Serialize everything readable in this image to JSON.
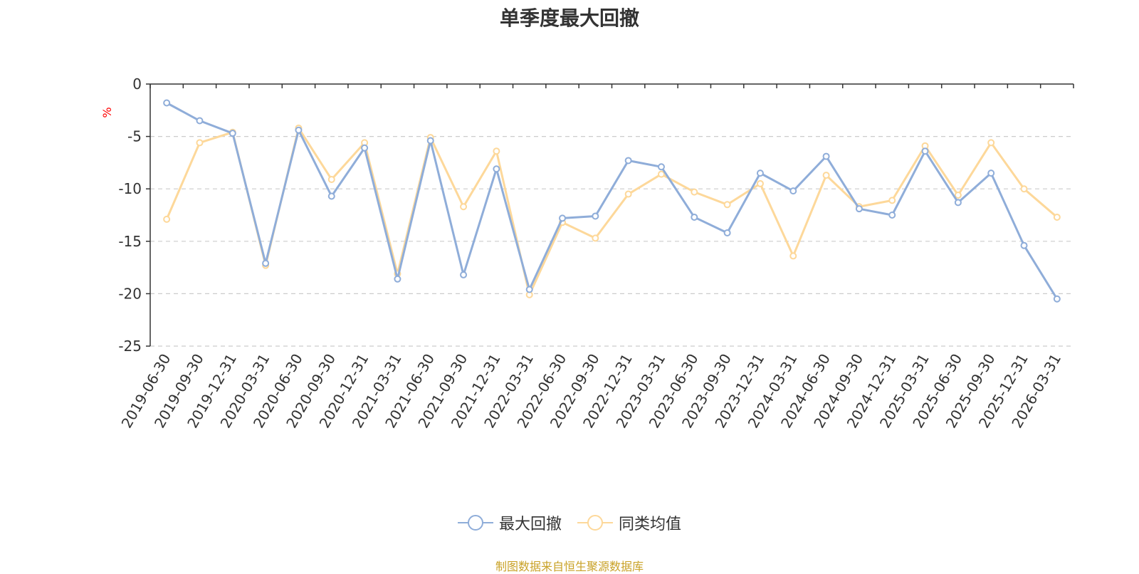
{
  "chart_data": {
    "type": "line",
    "title": "单季度最大回撤",
    "ylabel": "%",
    "ylim": [
      -25,
      0
    ],
    "yticks": [
      0,
      -5,
      -10,
      -15,
      -20,
      -25
    ],
    "grid": true,
    "legend_position": "bottom-center",
    "x": [
      "2019-06-30",
      "2019-09-30",
      "2019-12-31",
      "2020-03-31",
      "2020-06-30",
      "2020-09-30",
      "2020-12-31",
      "2021-03-31",
      "2021-06-30",
      "2021-09-30",
      "2021-12-31",
      "2022-03-31",
      "2022-06-30",
      "2022-09-30",
      "2022-12-31",
      "2023-03-31",
      "2023-06-30",
      "2023-09-30",
      "2023-12-31",
      "2024-03-31",
      "2024-06-30",
      "2024-09-30",
      "2024-12-31",
      "2025-03-31",
      "2025-06-30",
      "2025-09-30",
      "2025-12-31",
      "2026-03-31"
    ],
    "series": [
      {
        "name": "最大回撤",
        "color": "#8fadd9",
        "values": [
          -1.8,
          -3.5,
          -4.7,
          -17.1,
          -4.4,
          -10.7,
          -6.1,
          -18.6,
          -5.4,
          -18.2,
          -8.1,
          -19.6,
          -12.8,
          -12.6,
          -7.3,
          -7.9,
          -12.7,
          -14.2,
          -8.5,
          -10.2,
          -6.9,
          -11.9,
          -12.5,
          -6.4,
          -11.3,
          -8.5,
          -15.4,
          -20.5
        ]
      },
      {
        "name": "同类均值",
        "color": "#fdd89a",
        "values": [
          -12.9,
          -5.6,
          -4.6,
          -17.3,
          -4.2,
          -9.1,
          -5.6,
          -18.1,
          -5.1,
          -11.7,
          -6.4,
          -20.1,
          -13.2,
          -14.7,
          -10.5,
          -8.6,
          -10.3,
          -11.5,
          -9.5,
          -16.4,
          -8.7,
          -11.7,
          -11.1,
          -5.9,
          -10.6,
          -5.6,
          -10.0,
          -12.7
        ]
      }
    ]
  },
  "source_text": "制图数据来自恒生聚源数据库",
  "colors": {
    "axis": "#333333",
    "grid": "#cccccc",
    "ylabel": "#ff0000",
    "source": "#c9a227"
  }
}
